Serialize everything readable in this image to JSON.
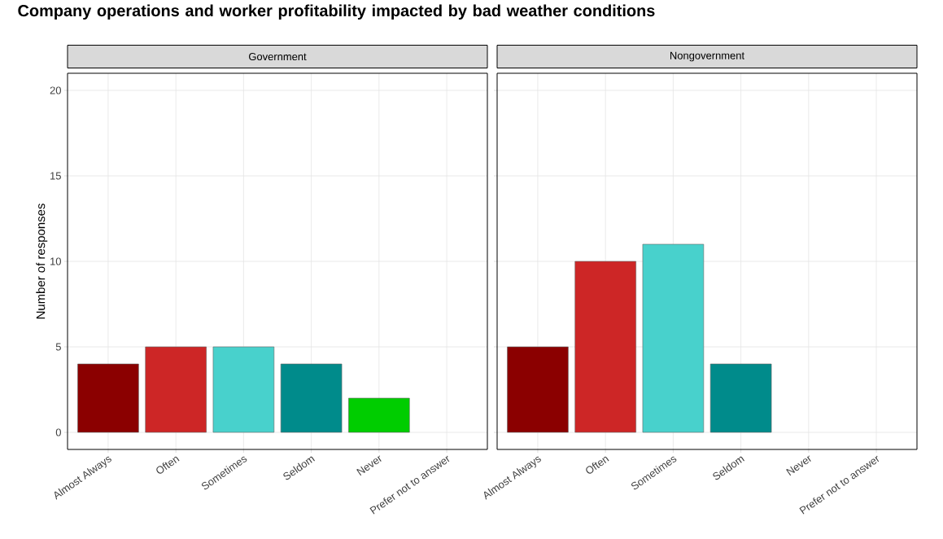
{
  "chart_data": [
    {
      "type": "bar",
      "title": "Company operations and worker profitability impacted by bad weather conditions",
      "subtitle": "Government",
      "ylabel": "Number of responses",
      "categories": [
        "Almost Always",
        "Often",
        "Sometimes",
        "Seldom",
        "Never",
        "Prefer not to answer"
      ],
      "values": [
        4,
        5,
        5,
        4,
        2,
        null
      ],
      "colors": [
        "#8b0000",
        "#cd2626",
        "#48d1cc",
        "#008b8b",
        "#00cd00",
        "#ff69b4"
      ],
      "ylim": [
        -1,
        21
      ],
      "yticks": [
        0,
        5,
        10,
        15,
        20
      ],
      "grid": true
    },
    {
      "type": "bar",
      "subtitle": "Nongovernment",
      "categories": [
        "Almost Always",
        "Often",
        "Sometimes",
        "Seldom",
        "Never",
        "Prefer not to answer"
      ],
      "values": [
        5,
        10,
        11,
        4,
        null,
        null
      ],
      "colors": [
        "#8b0000",
        "#cd2626",
        "#48d1cc",
        "#008b8b",
        "#00cd00",
        "#ff69b4"
      ],
      "ylim": [
        -1,
        21
      ],
      "yticks": [
        0,
        5,
        10,
        15,
        20
      ],
      "grid": true,
      "tick_labels": "x"
    }
  ]
}
